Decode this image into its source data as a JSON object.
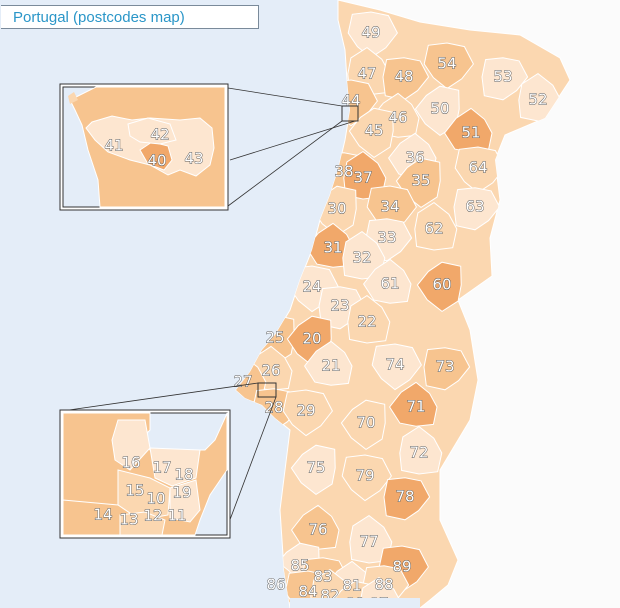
{
  "title": "Portugal (postcodes map)",
  "colors": {
    "sea": "#e4edf8",
    "land_outside": "#fbfbfb",
    "border": "#ffffff",
    "shade_1": "#fde6d0",
    "shade_2": "#fbd7b0",
    "shade_3": "#f7c48f",
    "shade_4": "#f1a86a",
    "label_fill": "#ffffff",
    "label_stroke": "#555555"
  },
  "main_regions": [
    "49",
    "47",
    "48",
    "54",
    "53",
    "52",
    "44",
    "46",
    "50",
    "45",
    "51",
    "36",
    "38",
    "37",
    "35",
    "64",
    "30",
    "34",
    "63",
    "33",
    "62",
    "31",
    "32",
    "61",
    "60",
    "24",
    "23",
    "25",
    "20",
    "22",
    "21",
    "74",
    "73",
    "26",
    "27",
    "28",
    "29",
    "70",
    "71",
    "75",
    "79",
    "72",
    "78",
    "76",
    "77",
    "85",
    "83",
    "89",
    "86",
    "81",
    "88",
    "84",
    "82",
    "80",
    "87"
  ],
  "inset_north": {
    "codes": [
      "41",
      "42",
      "40",
      "43"
    ]
  },
  "inset_lisbon": {
    "codes": [
      "16",
      "17",
      "18",
      "15",
      "10",
      "19",
      "14",
      "13",
      "12",
      "11"
    ]
  }
}
